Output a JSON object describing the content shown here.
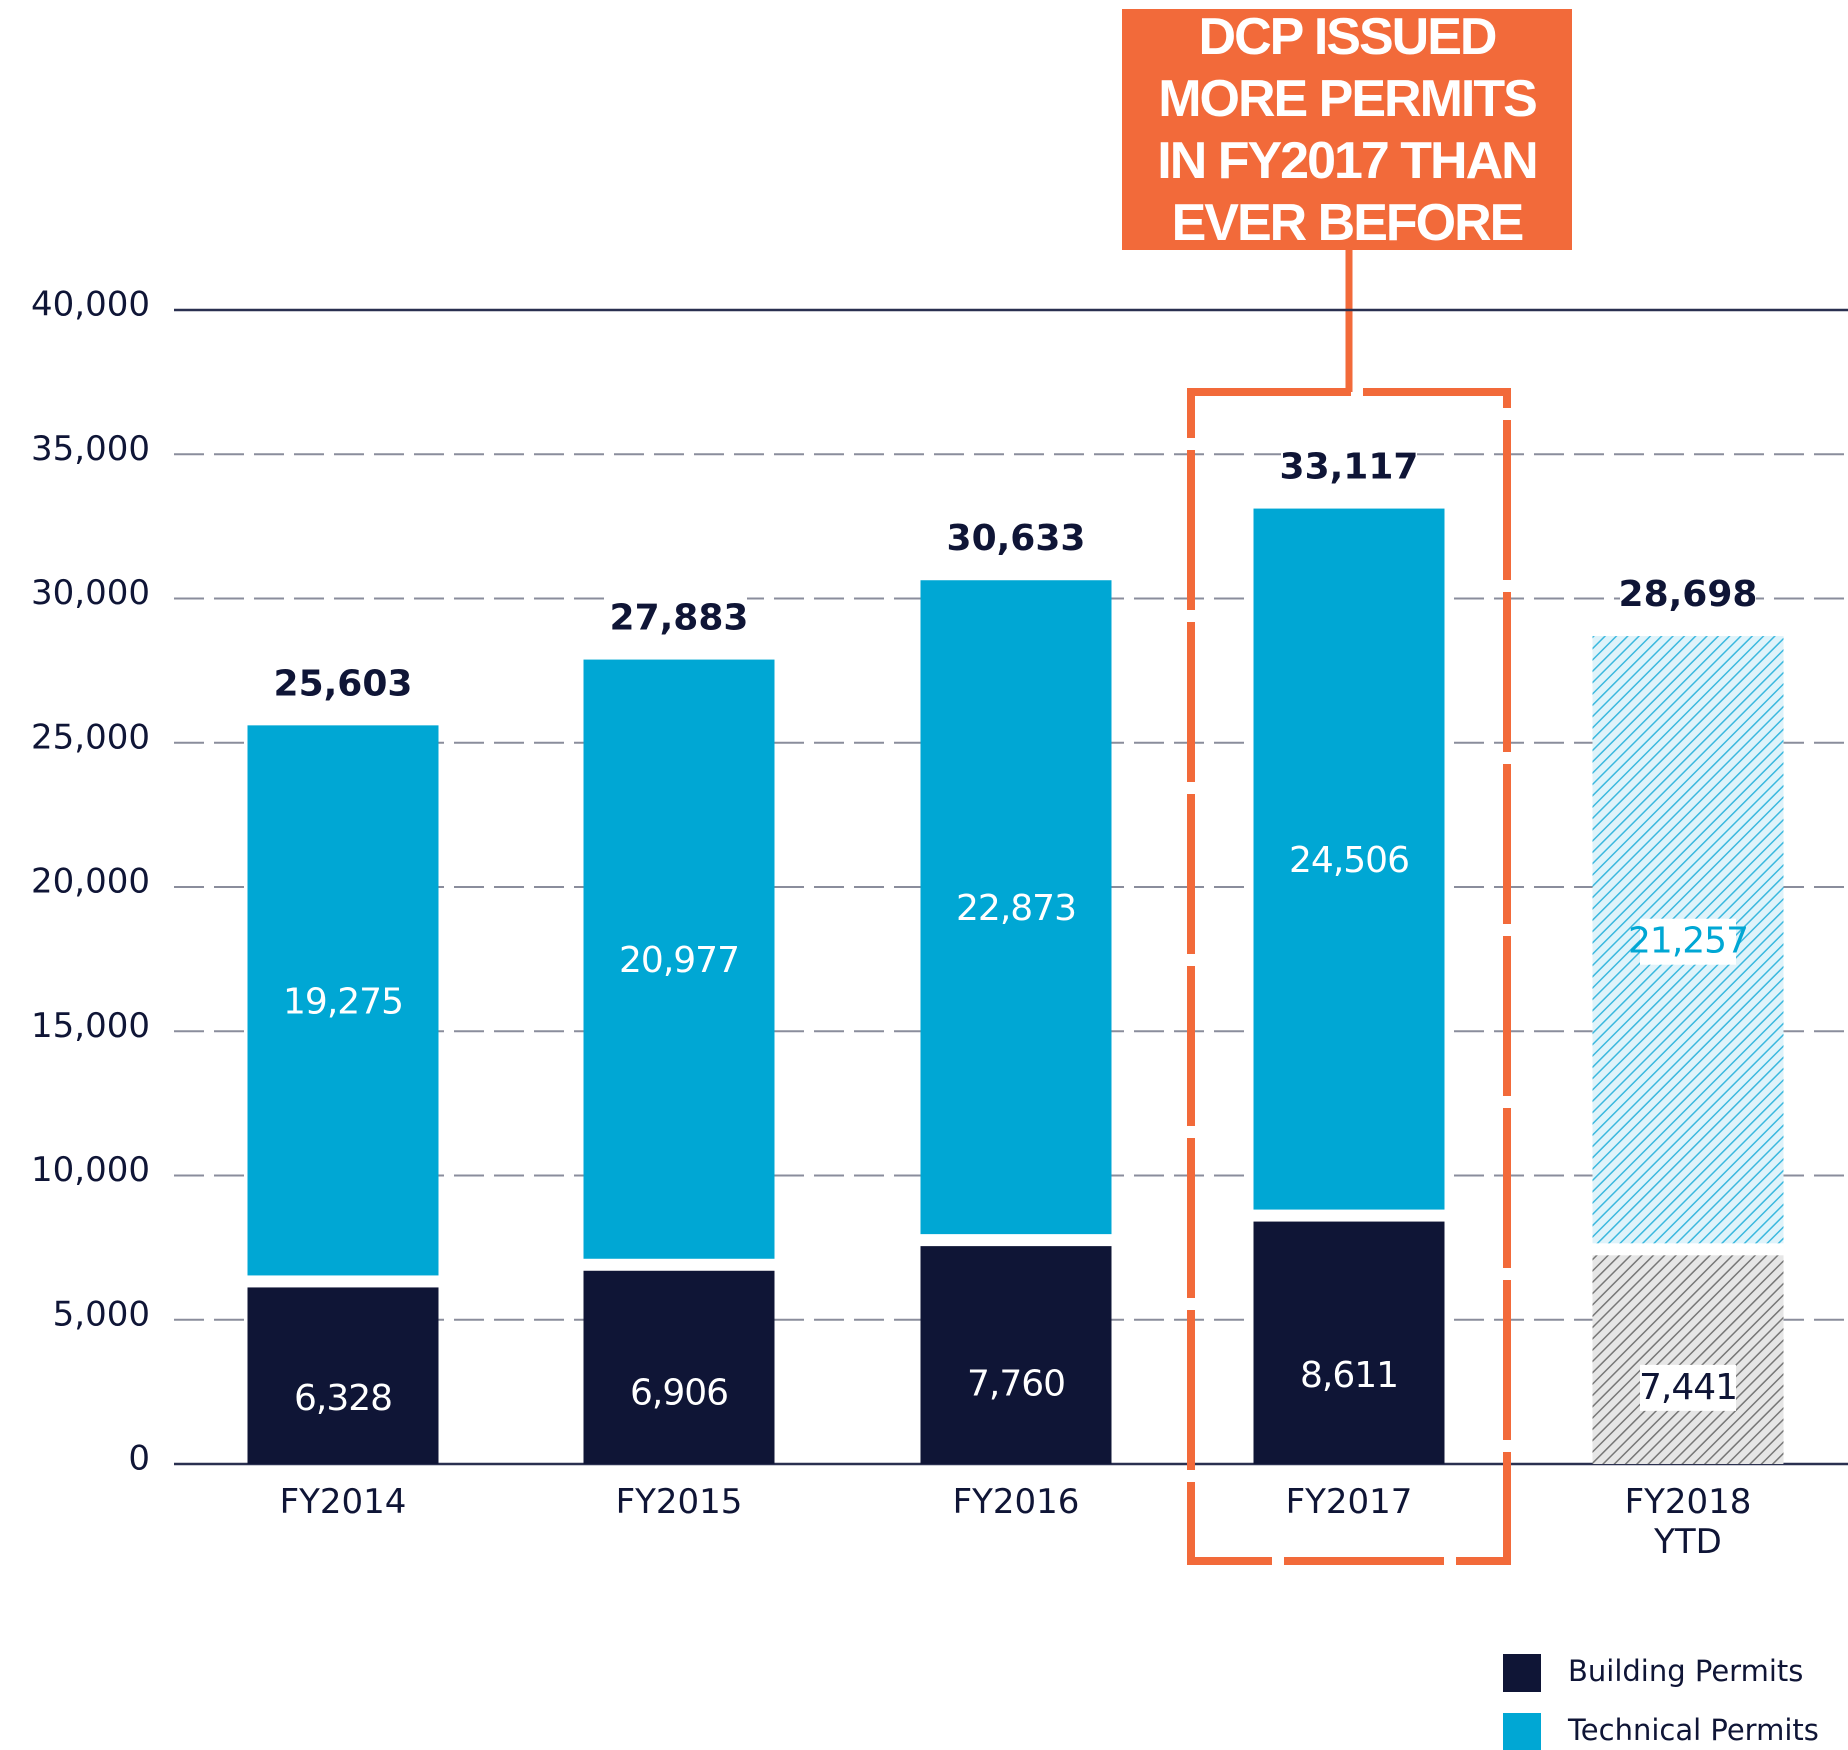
{
  "chart_data": {
    "type": "stacked_bar",
    "categories": [
      "FY2014",
      "FY2015",
      "FY2016",
      "FY2017",
      "FY2018\nYTD"
    ],
    "series": [
      {
        "name": "Building Permits",
        "color": "#0f1536",
        "values": [
          6328,
          6906,
          7760,
          8611,
          7441
        ],
        "value_labels": [
          "6,328",
          "6,906",
          "7,760",
          "8,611",
          "7,441"
        ]
      },
      {
        "name": "Technical Permits",
        "color": "#00a7d4",
        "values": [
          19275,
          20977,
          22873,
          24506,
          21257
        ],
        "value_labels": [
          "19,275",
          "20,977",
          "22,873",
          "24,506",
          "21,257"
        ]
      }
    ],
    "totals": [
      25603,
      27883,
      30633,
      33117,
      28698
    ],
    "totals_labels": [
      "25,603",
      "27,883",
      "30,633",
      "33,117",
      "28,698"
    ],
    "ylim": [
      0,
      40000
    ],
    "yticks": [
      {
        "value": 0,
        "label": "0"
      },
      {
        "value": 5000,
        "label": "5,000"
      },
      {
        "value": 10000,
        "label": "10,000"
      },
      {
        "value": 15000,
        "label": "15,000"
      },
      {
        "value": 20000,
        "label": "20,000"
      },
      {
        "value": 25000,
        "label": "25,000"
      },
      {
        "value": 30000,
        "label": "30,000"
      },
      {
        "value": 35000,
        "label": "35,000"
      },
      {
        "value": 40000,
        "label": "40,000"
      }
    ],
    "grid": true,
    "highlight_index": 3,
    "hatched_index": 4,
    "annotation": "DCP ISSUED MORE PERMITS IN FY2017 THAN EVER BEFORE",
    "legend": "bottom-right"
  }
}
